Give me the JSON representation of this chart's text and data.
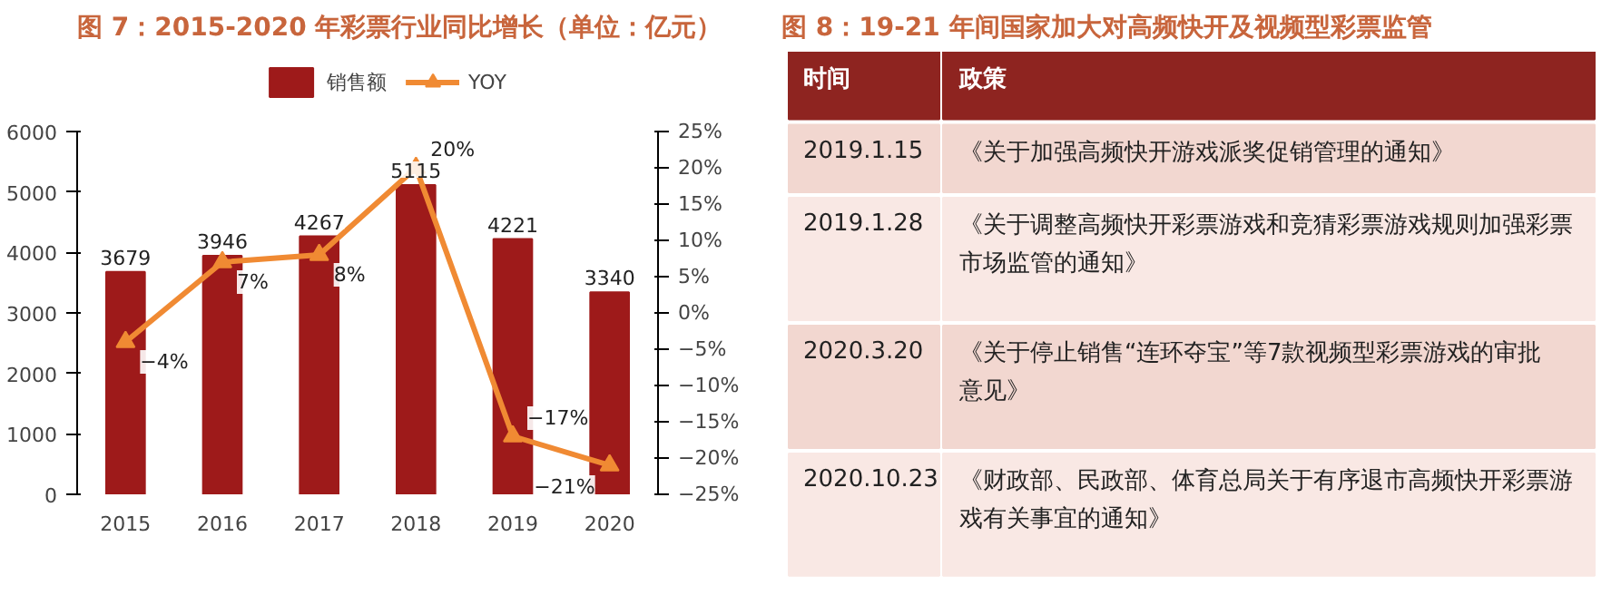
{
  "chart_data": [
    {
      "type": "bar",
      "title": "图 7：2015-2020 年彩票行业同比增长（单位：亿元）",
      "categories": [
        "2015",
        "2016",
        "2017",
        "2018",
        "2019",
        "2020"
      ],
      "series": [
        {
          "name": "销售额",
          "type": "bar",
          "color": "#9e1a1a",
          "values": [
            3679,
            3946,
            4267,
            5115,
            4221,
            3340
          ]
        },
        {
          "name": "YOY",
          "type": "line",
          "axis": "y2",
          "color": "#f08a33",
          "marker": "triangle",
          "values": [
            -4,
            7,
            8,
            20,
            -17,
            -21
          ],
          "value_labels": [
            "−4%",
            "7%",
            "8%",
            "20%",
            "−17%",
            "−21%"
          ]
        }
      ],
      "data_labels": true,
      "ylim": [
        0,
        6000
      ],
      "yticks": [
        0,
        1000,
        2000,
        3000,
        4000,
        5000,
        6000
      ],
      "y2lim": [
        -25,
        25
      ],
      "y2ticks": [
        {
          "value": -25,
          "label": "−25%"
        },
        {
          "value": -20,
          "label": "−20%"
        },
        {
          "value": -15,
          "label": "−15%"
        },
        {
          "value": -10,
          "label": "−10%"
        },
        {
          "value": -5,
          "label": "−5%"
        },
        {
          "value": 0,
          "label": "0%"
        },
        {
          "value": 5,
          "label": "5%"
        },
        {
          "value": 10,
          "label": "10%"
        },
        {
          "value": 15,
          "label": "15%"
        },
        {
          "value": 20,
          "label": "20%"
        },
        {
          "value": 25,
          "label": "25%"
        }
      ],
      "legend": "top",
      "grid": false
    },
    {
      "type": "other",
      "title": "图 8：19-21 年间国家加大对高频快开及视频型彩票监管",
      "annotations": [
        "时间",
        "政策",
        "2019.1.15",
        "《关于加强高频快开游戏派奖促销管理的通知》",
        "2019.1.28",
        "《关于调整高频快开彩票游戏和竞猜彩票游戏规则加强彩票市场监管的通知》",
        "2020.3.20",
        "《关于停止销售“连环夺宝”等7款视频型彩票游戏的审批意见》",
        "2020.10.23",
        "《财政部、民政部、体育总局关于有序退市高频快开彩票游戏有关事宜的通知》"
      ]
    }
  ]
}
